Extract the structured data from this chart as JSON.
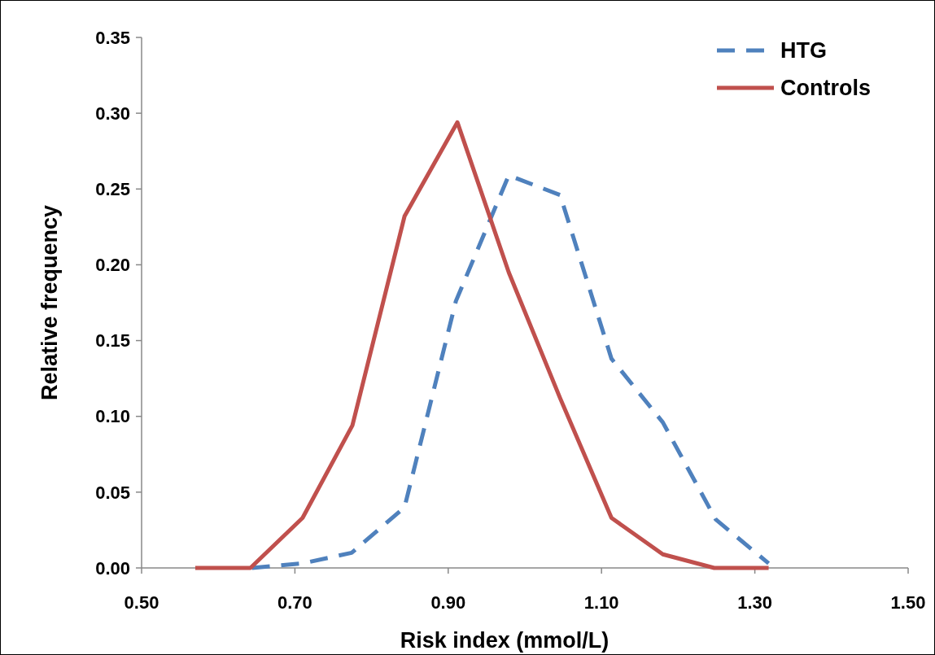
{
  "chart_data": {
    "type": "line",
    "xlabel": "Risk index (mmol/L)",
    "ylabel": "Relative frequency",
    "xlim": [
      0.5,
      1.5
    ],
    "xticks": [
      {
        "value": 0.5,
        "label": "0.50"
      },
      {
        "value": 0.7,
        "label": "0.70"
      },
      {
        "value": 0.9,
        "label": "0.90"
      },
      {
        "value": 1.1,
        "label": "1.10"
      },
      {
        "value": 1.3,
        "label": "1.30"
      },
      {
        "value": 1.5,
        "label": "1.50"
      }
    ],
    "ylim": [
      0,
      0.35
    ],
    "yticks": [
      {
        "value": 0,
        "label": "0.00"
      },
      {
        "value": 0.05,
        "label": "0.05"
      },
      {
        "value": 0.1,
        "label": "0.10"
      },
      {
        "value": 0.15,
        "label": "0.15"
      },
      {
        "value": 0.2,
        "label": "0.20"
      },
      {
        "value": 0.25,
        "label": "0.25"
      },
      {
        "value": 0.3,
        "label": "0.30"
      },
      {
        "value": 0.35,
        "label": "0.35"
      }
    ],
    "grid": false,
    "legend": "top right",
    "marker": "none",
    "series": [
      {
        "name": "HTG",
        "color": "#4f81bd",
        "line_style": "dashed",
        "x": [
          0.644,
          0.71,
          0.774,
          0.843,
          0.91,
          0.979,
          1.046,
          1.113,
          1.18,
          1.249,
          1.318
        ],
        "values": [
          0,
          0.003,
          0.01,
          0.04,
          0.176,
          0.259,
          0.246,
          0.138,
          0.096,
          0.032,
          0.003
        ]
      },
      {
        "name": "Controls",
        "color": "#c0504d",
        "line_style": "solid",
        "x": [
          0.57,
          0.642,
          0.71,
          0.775,
          0.843,
          0.912,
          0.979,
          1.046,
          1.113,
          1.18,
          1.247,
          1.318
        ],
        "values": [
          0,
          0,
          0.033,
          0.094,
          0.232,
          0.294,
          0.195,
          0.112,
          0.033,
          0.009,
          0,
          0
        ]
      }
    ]
  }
}
